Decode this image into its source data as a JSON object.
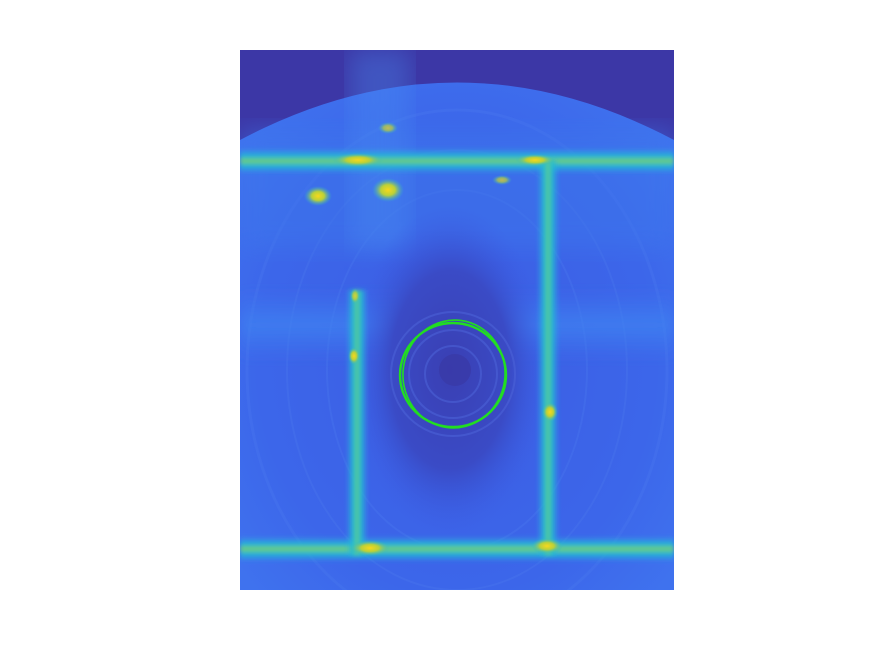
{
  "image": {
    "kind": "parula-colormap intensity image with green contour overlay",
    "colormap": "parula",
    "colors": {
      "background_dark": "#3c37a6",
      "base_blue": "#3b5ee6",
      "mid_blue": "#3a86f0",
      "cyan": "#18b6d8",
      "teal": "#2ac4a0",
      "yellow_green": "#a8d040",
      "yellow": "#f5d020",
      "inner_dark": "#3845b8",
      "contour": "#22dd22"
    },
    "features": {
      "rectangular_bright_frame": true,
      "central_circle_contour": true,
      "bright_hotspots": 6
    }
  }
}
